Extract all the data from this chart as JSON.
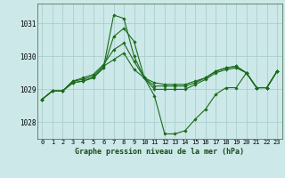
{
  "title": "Graphe pression niveau de la mer (hPa)",
  "background_color": "#cce8e8",
  "grid_color": "#aacfcf",
  "line_color": "#1a6b1a",
  "marker_color": "#1a6b1a",
  "xlim": [
    -0.5,
    23.5
  ],
  "ylim": [
    1027.5,
    1031.6
  ],
  "yticks": [
    1028,
    1029,
    1030,
    1031
  ],
  "xticks": [
    0,
    1,
    2,
    3,
    4,
    5,
    6,
    7,
    8,
    9,
    10,
    11,
    12,
    13,
    14,
    15,
    16,
    17,
    18,
    19,
    20,
    21,
    22,
    23
  ],
  "series": [
    [
      1028.7,
      1028.95,
      1028.95,
      1029.2,
      1029.25,
      1029.35,
      1029.65,
      1031.25,
      1031.15,
      1030.0,
      1029.35,
      1028.8,
      1027.65,
      1027.65,
      1027.75,
      1028.1,
      1028.4,
      1028.85,
      1029.05,
      1029.05,
      1029.5,
      1029.05,
      1029.05,
      1029.55
    ],
    [
      1028.7,
      1028.95,
      1028.95,
      1029.2,
      1029.25,
      1029.35,
      1029.65,
      1030.6,
      1030.85,
      1030.45,
      1029.35,
      1029.0,
      1029.0,
      1029.0,
      1029.0,
      1029.15,
      1029.3,
      1029.5,
      1029.6,
      1029.65,
      1029.5,
      1029.05,
      1029.05,
      1029.55
    ],
    [
      1028.7,
      1028.95,
      1028.95,
      1029.25,
      1029.35,
      1029.45,
      1029.75,
      1030.2,
      1030.4,
      1029.85,
      1029.35,
      1029.1,
      1029.1,
      1029.1,
      1029.1,
      1029.2,
      1029.35,
      1029.55,
      1029.65,
      1029.7,
      1029.5,
      1029.05,
      1029.05,
      1029.55
    ],
    [
      1028.7,
      1028.95,
      1028.95,
      1029.25,
      1029.3,
      1029.4,
      1029.7,
      1029.9,
      1030.1,
      1029.6,
      1029.35,
      1029.2,
      1029.15,
      1029.15,
      1029.15,
      1029.25,
      1029.35,
      1029.55,
      1029.65,
      1029.7,
      1029.5,
      1029.05,
      1029.05,
      1029.55
    ]
  ]
}
